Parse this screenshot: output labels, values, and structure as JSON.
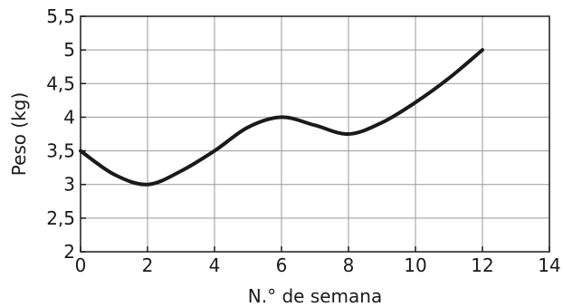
{
  "chart_data": {
    "type": "line",
    "title": "",
    "xlabel": "N.° de semana",
    "ylabel": "Peso (kg)",
    "xlim": [
      0,
      14
    ],
    "ylim": [
      2,
      5.5
    ],
    "xticks": [
      0,
      2,
      4,
      6,
      8,
      10,
      12,
      14
    ],
    "yticks": [
      2,
      2.5,
      3,
      3.5,
      4,
      4.5,
      5,
      5.5
    ],
    "xtick_labels": [
      "0",
      "2",
      "4",
      "6",
      "8",
      "10",
      "12",
      "14"
    ],
    "ytick_labels": [
      "2",
      "2,5",
      "3",
      "3,5",
      "4",
      "4,5",
      "5",
      "5,5"
    ],
    "grid": true,
    "line_color": "#1a1a1a",
    "series": [
      {
        "x": [
          0,
          1,
          2,
          3,
          4,
          5,
          6,
          7,
          8,
          9,
          10,
          11,
          12
        ],
        "values": [
          3.5,
          3.15,
          3.0,
          3.2,
          3.5,
          3.85,
          4.0,
          3.88,
          3.75,
          3.92,
          4.22,
          4.58,
          5.0
        ]
      }
    ]
  }
}
